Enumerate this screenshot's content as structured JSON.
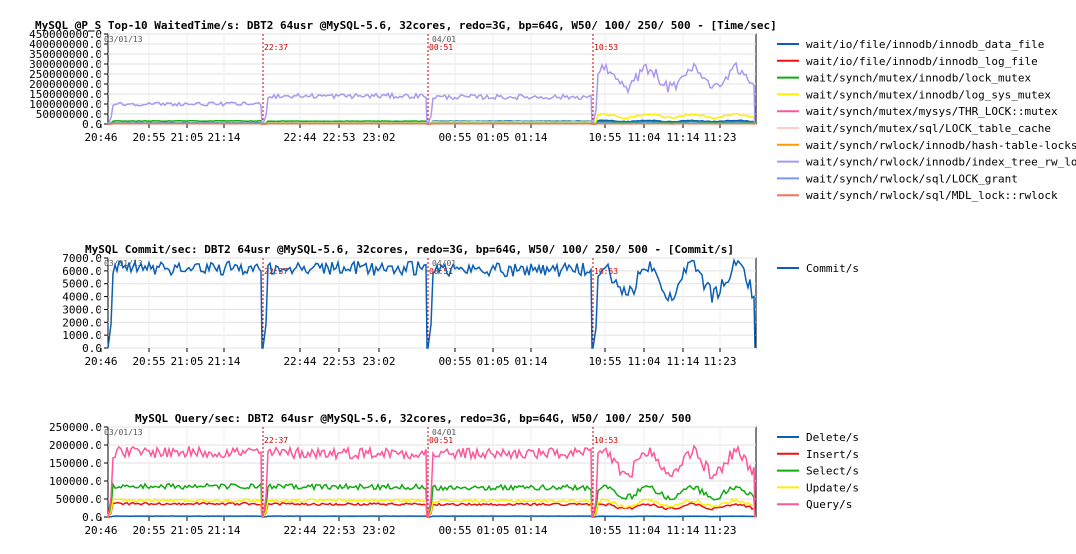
{
  "chart_data": [
    {
      "type": "line",
      "title": "MySQL @P_S Top-10 WaitedTime/s: DBT2 64usr @MySQL-5.6, 32cores, redo=3G, bp=64G, W50/ 100/ 250/ 500 - [Time/sec]",
      "ylim": [
        0,
        450000000
      ],
      "yticks": [
        "0.0",
        "50000000.0",
        "100000000.0",
        "150000000.0",
        "200000000.0",
        "250000000.0",
        "300000000.0",
        "350000000.0",
        "400000000.0",
        "450000000.0"
      ],
      "xticks": [
        "20:46",
        "20:55",
        "21:05",
        "21:14",
        "22:44",
        "22:53",
        "23:02",
        "00:55",
        "01:05",
        "01:14",
        "10:55",
        "11:04",
        "11:14",
        "11:23"
      ],
      "annotations": [
        "03/01/13",
        "22:37",
        "04/01",
        "00:51",
        "10:53"
      ],
      "series": [
        {
          "name": "wait/io/file/innodb/innodb_data_file",
          "color": "#0b5fb4",
          "levels": [
            6000000,
            6000000,
            14000000,
            15000000
          ]
        },
        {
          "name": "wait/io/file/innodb/innodb_log_file",
          "color": "#ee1111",
          "levels": [
            3000000,
            3000000,
            3000000,
            3000000
          ]
        },
        {
          "name": "wait/synch/mutex/innodb/lock_mutex",
          "color": "#11aa11",
          "levels": [
            15000000,
            14000000,
            12000000,
            10000000
          ]
        },
        {
          "name": "wait/synch/mutex/innodb/log_sys_mutex",
          "color": "#ffee00",
          "levels": [
            5000000,
            7000000,
            10000000,
            40000000
          ]
        },
        {
          "name": "wait/synch/mutex/mysys/THR_LOCK::mutex",
          "color": "#ff5599",
          "levels": [
            1000000,
            1000000,
            1000000,
            1000000
          ]
        },
        {
          "name": "wait/synch/mutex/sql/LOCK_table_cache",
          "color": "#ffcccc",
          "levels": [
            1000000,
            1000000,
            1000000,
            1000000
          ]
        },
        {
          "name": "wait/synch/rwlock/innodb/hash-table-locks",
          "color": "#ff9900",
          "levels": [
            2000000,
            2000000,
            2000000,
            2000000
          ]
        },
        {
          "name": "wait/synch/rwlock/innodb/index_tree_rw_lock",
          "color": "#aa99ee",
          "levels": [
            100000000,
            140000000,
            135000000,
            230000000
          ]
        },
        {
          "name": "wait/synch/rwlock/sql/LOCK_grant",
          "color": "#7799ee",
          "levels": [
            4000000,
            4000000,
            4000000,
            4000000
          ]
        },
        {
          "name": "wait/synch/rwlock/sql/MDL_lock::rwlock",
          "color": "#ee7755",
          "levels": [
            1000000,
            1000000,
            1000000,
            1000000
          ]
        }
      ]
    },
    {
      "type": "line",
      "title": "MySQL Commit/sec: DBT2 64usr @MySQL-5.6, 32cores, redo=3G, bp=64G, W50/ 100/ 250/ 500 - [Commit/s]",
      "ylim": [
        0,
        7000
      ],
      "yticks": [
        "0.0",
        "1000.0",
        "2000.0",
        "3000.0",
        "4000.0",
        "5000.0",
        "6000.0",
        "7000.0"
      ],
      "xticks": [
        "20:46",
        "20:55",
        "21:05",
        "21:14",
        "22:44",
        "22:53",
        "23:02",
        "00:55",
        "01:05",
        "01:14",
        "10:55",
        "11:04",
        "11:14",
        "11:23"
      ],
      "annotations": [
        "03/01/13",
        "22:37",
        "04/01",
        "00:51",
        "10:53"
      ],
      "series": [
        {
          "name": "Commit/s",
          "color": "#0b5fb4",
          "levels": [
            6200,
            6200,
            6100,
            5200
          ]
        }
      ]
    },
    {
      "type": "line",
      "title": "MySQL Query/sec: DBT2 64usr @MySQL-5.6, 32cores, redo=3G, bp=64G, W50/ 100/ 250/ 500",
      "ylim": [
        0,
        250000
      ],
      "yticks": [
        "0.0",
        "50000.0",
        "100000.0",
        "150000.0",
        "200000.0",
        "250000.0"
      ],
      "xticks": [
        "20:46",
        "20:55",
        "21:05",
        "21:14",
        "22:44",
        "22:53",
        "23:02",
        "00:55",
        "01:05",
        "01:14",
        "10:55",
        "11:04",
        "11:14",
        "11:23"
      ],
      "annotations": [
        "03/01/13",
        "22:37",
        "04/01",
        "00:51",
        "10:53"
      ],
      "series": [
        {
          "name": "Delete/s",
          "color": "#0b5fb4",
          "levels": [
            2500,
            2500,
            2500,
            2000
          ]
        },
        {
          "name": "Insert/s",
          "color": "#ee1111",
          "levels": [
            37000,
            36000,
            35000,
            29000
          ]
        },
        {
          "name": "Select/s",
          "color": "#11aa11",
          "levels": [
            85000,
            84000,
            82000,
            68000
          ]
        },
        {
          "name": "Update/s",
          "color": "#ffee00",
          "levels": [
            46000,
            46000,
            45000,
            38000
          ]
        },
        {
          "name": "Query/s",
          "color": "#ff5599",
          "levels": [
            180000,
            178000,
            176000,
            150000
          ]
        }
      ]
    }
  ]
}
